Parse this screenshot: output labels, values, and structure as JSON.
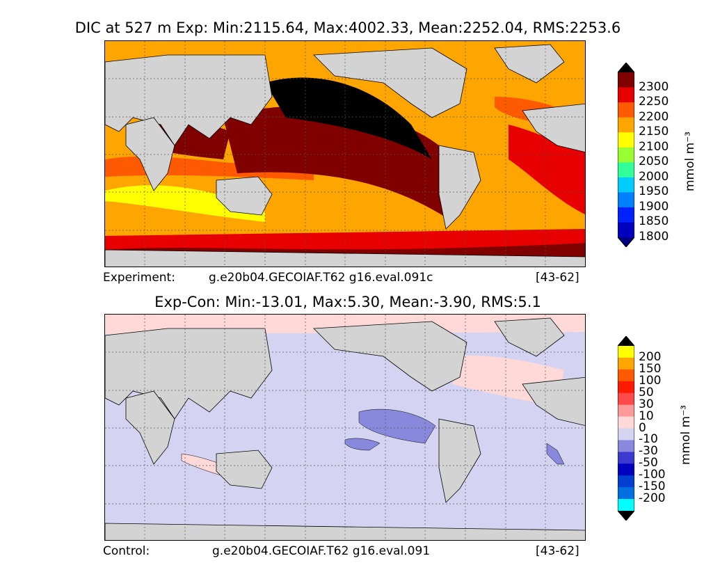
{
  "top_panel": {
    "title": "DIC at 527 m Exp: Min:2115.64, Max:4002.33, Mean:2252.04, RMS:2253.6",
    "caption_left": "Experiment:",
    "caption_center": "g.e20b04.GECOIAF.T62 g16.eval.091c",
    "caption_right": "[43-62]",
    "colorbar": {
      "unit": "mmol m⁻³",
      "ticks": [
        "2300",
        "2250",
        "2200",
        "2150",
        "2100",
        "2050",
        "2000",
        "1950",
        "1900",
        "1850",
        "1800"
      ],
      "colors": [
        "#000000",
        "#800000",
        "#e80000",
        "#ff5a00",
        "#ffa500",
        "#ffff00",
        "#99ff33",
        "#33ff99",
        "#00ccff",
        "#0080ff",
        "#0022ff",
        "#0000c0",
        "#000080"
      ]
    }
  },
  "bottom_panel": {
    "title": "Exp-Con: Min:-13.01, Max:5.30, Mean:-3.90, RMS:5.1",
    "caption_left": "Control:",
    "caption_center": "g.e20b04.GECOIAF.T62 g16.eval.091",
    "caption_right": "[43-62]",
    "colorbar": {
      "unit": "mmol m⁻³",
      "ticks": [
        "200",
        "150",
        "100",
        "50",
        "30",
        "10",
        "0",
        "-10",
        "-30",
        "-50",
        "-100",
        "-150",
        "-200"
      ],
      "colors": [
        "#000000",
        "#ffff00",
        "#ffa500",
        "#ff5a00",
        "#ff1a00",
        "#ff4a4a",
        "#ff9a9a",
        "#ffd8d8",
        "#d4d4f2",
        "#8888dd",
        "#3a3ad0",
        "#0000c0",
        "#0040d0",
        "#0070e0",
        "#00ffff",
        "#000000"
      ]
    }
  }
}
